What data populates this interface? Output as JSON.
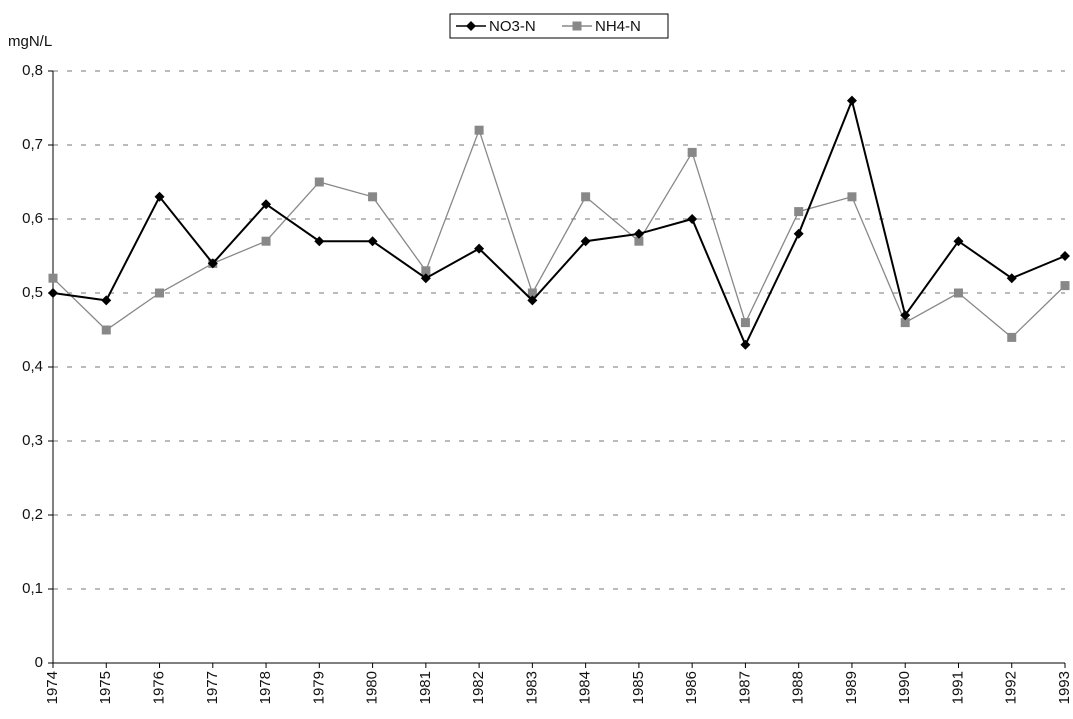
{
  "chart_data": {
    "type": "line",
    "y_axis_label": "mgN/L",
    "categories": [
      "1974",
      "1975",
      "1976",
      "1977",
      "1978",
      "1979",
      "1980",
      "1981",
      "1982",
      "1983",
      "1984",
      "1985",
      "1986",
      "1987",
      "1988",
      "1989",
      "1990",
      "1991",
      "1992",
      "1993"
    ],
    "series": [
      {
        "name": "NO3-N",
        "color": "#000000",
        "marker": "diamond",
        "values": [
          0.5,
          0.49,
          0.63,
          0.54,
          0.62,
          0.57,
          0.57,
          0.52,
          0.56,
          0.49,
          0.57,
          0.58,
          0.6,
          0.43,
          0.58,
          0.76,
          0.47,
          0.57,
          0.52,
          0.55
        ]
      },
      {
        "name": "NH4-N",
        "color": "#888888",
        "marker": "square",
        "values": [
          0.52,
          0.45,
          0.5,
          0.54,
          0.57,
          0.65,
          0.63,
          0.53,
          0.72,
          0.5,
          0.63,
          0.57,
          0.69,
          0.46,
          0.61,
          0.63,
          0.46,
          0.5,
          0.44,
          0.51
        ]
      }
    ],
    "ylim": [
      0,
      0.8
    ],
    "yticks": [
      0,
      {
        "value": 0.1,
        "label": "0,1"
      },
      {
        "value": 0.2,
        "label": "0,2"
      },
      {
        "value": 0.3,
        "label": "0,3"
      },
      {
        "value": 0.4,
        "label": "0,4"
      },
      {
        "value": 0.5,
        "label": "0,5"
      },
      {
        "value": 0.6,
        "label": "0,6"
      },
      {
        "value": 0.7,
        "label": "0,7"
      },
      {
        "value": 0.8,
        "label": "0,8"
      }
    ],
    "grid": true,
    "legend": "top"
  }
}
